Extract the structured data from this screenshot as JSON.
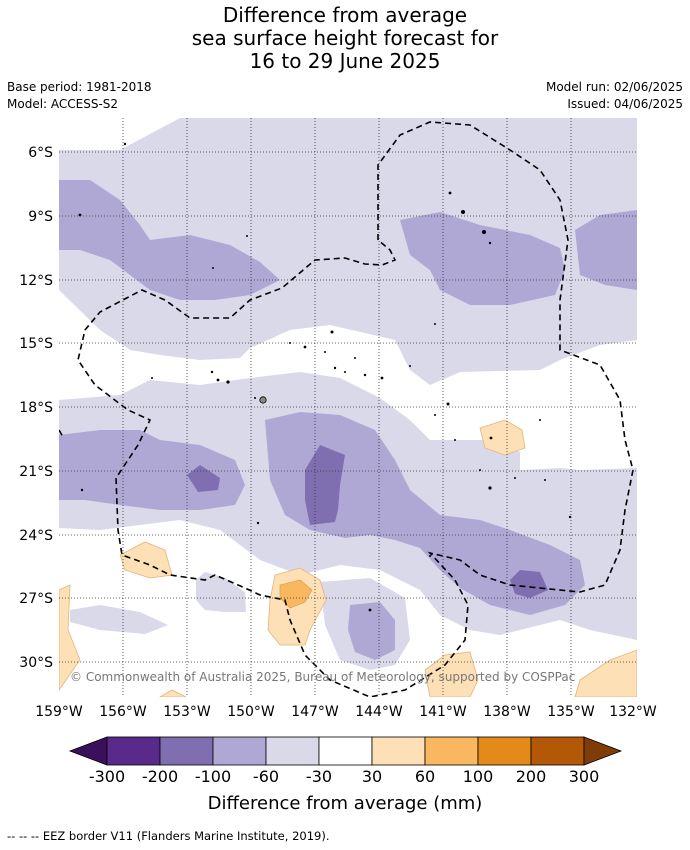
{
  "title": {
    "line1": "Difference from average",
    "line2": "sea surface height forecast for",
    "line3": "16 to 29 June 2025"
  },
  "meta": {
    "base_period": "Base period: 1981-2018",
    "model": "Model: ACCESS-S2",
    "model_run": "Model run: 02/06/2025",
    "issued": "Issued: 04/06/2025"
  },
  "map": {
    "lat_labels": [
      "6°S",
      "9°S",
      "12°S",
      "15°S",
      "18°S",
      "21°S",
      "24°S",
      "27°S",
      "30°S"
    ],
    "lon_labels": [
      "159°W",
      "156°W",
      "153°W",
      "150°W",
      "147°W",
      "144°W",
      "141°W",
      "138°W",
      "135°W",
      "132°W"
    ],
    "copyright": "© Commonwealth of Australia 2025, Bureau of Meteorology, supported by COSPPac"
  },
  "colorbar": {
    "labels": [
      "-300",
      "-200",
      "-100",
      "-60",
      "-30",
      "30",
      "60",
      "100",
      "200",
      "300"
    ],
    "colors": [
      "#3a0f5c",
      "#5a2a8a",
      "#7f6eb0",
      "#b0a8d4",
      "#d9d9ea",
      "#ffffff",
      "#fde0b6",
      "#f9b75f",
      "#e38a1a",
      "#b35806",
      "#7f3b08"
    ],
    "title": "Difference from average (mm)"
  },
  "footnote": "--  --  -- EEZ border V11 (Flanders Marine Institute, 2019)."
}
